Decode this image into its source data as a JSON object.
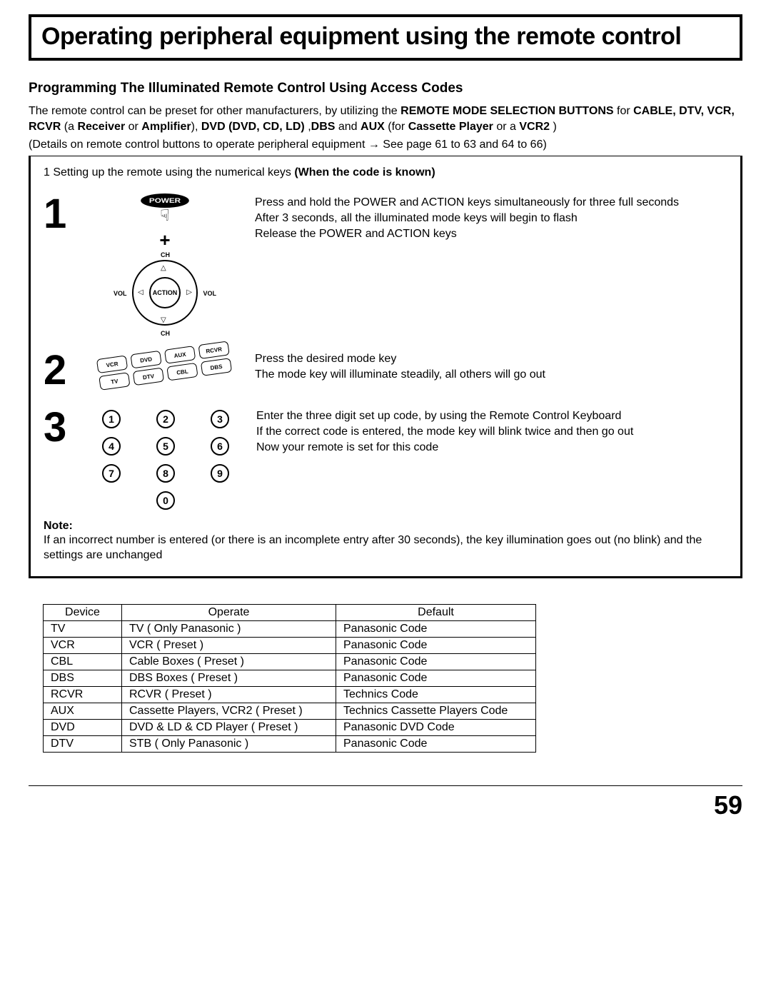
{
  "title": "Operating peripheral equipment using the remote control",
  "subhead": "Programming The Illuminated Remote Control Using Access Codes",
  "intro_parts": [
    "The remote control can be preset for other manufacturers, by utilizing the ",
    "REMOTE MODE SELECTION BUTTONS",
    " for ",
    "CABLE, DTV, VCR, RCVR ",
    "(a ",
    "Receiver",
    " or ",
    "Amplifier",
    "), ",
    "DVD (DVD, CD, LD)",
    " ,",
    "DBS",
    " and ",
    "AUX",
    " (for ",
    "Cassette Player",
    " or a ",
    "VCR2",
    " )"
  ],
  "details": "(Details on remote control buttons to operate peripheral equipment  →  See page 61 to 63 and 64 to 66)",
  "lead_prefix": "1  Setting up the remote using the numerical keys  ",
  "lead_bold": "(When the code is known)",
  "step1": {
    "num": "1",
    "power_label": "POWER",
    "action_label": "ACTION",
    "labels": {
      "ch": "CH",
      "vol": "VOL"
    },
    "desc_lines": [
      "Press and hold the POWER and ACTION keys simultaneously for three full seconds",
      "After 3 seconds, all the illuminated mode keys will begin to flash",
      "Release the POWER and ACTION keys"
    ]
  },
  "step2": {
    "num": "2",
    "keys": [
      "VCR",
      "DVD",
      "AUX",
      "RCVR",
      "TV",
      "DTV",
      "CBL",
      "DBS"
    ],
    "desc_lines": [
      "Press the desired mode key",
      "The mode key will illuminate steadily, all others will go out"
    ]
  },
  "step3": {
    "num": "3",
    "digits": [
      "1",
      "2",
      "3",
      "4",
      "5",
      "6",
      "7",
      "8",
      "9",
      "0"
    ],
    "desc_lines": [
      "Enter the three digit set up code, by using the Remote Control Keyboard",
      "If the correct code is entered, the mode key will blink twice and then go out",
      "Now your remote is set for this code"
    ]
  },
  "note": {
    "head": "Note:",
    "body": "If an incorrect number is entered (or there is an incomplete entry after 30 seconds), the key illumination goes out (no  blink) and the settings are unchanged"
  },
  "table": {
    "headers": [
      "Device",
      "Operate",
      "Default"
    ],
    "rows": [
      [
        "TV",
        "TV ( Only Panasonic )",
        "Panasonic Code"
      ],
      [
        "VCR",
        "VCR ( Preset )",
        "Panasonic Code"
      ],
      [
        "CBL",
        "Cable Boxes ( Preset )",
        "Panasonic Code"
      ],
      [
        "DBS",
        "DBS Boxes ( Preset )",
        "Panasonic Code"
      ],
      [
        "RCVR",
        "RCVR ( Preset )",
        "Technics Code"
      ],
      [
        "AUX",
        "Cassette Players, VCR2  ( Preset )",
        "Technics Cassette Players Code"
      ],
      [
        "DVD",
        "DVD & LD & CD Player  ( Preset )",
        "Panasonic DVD Code"
      ],
      [
        "DTV",
        "STB  ( Only Panasonic )",
        "Panasonic Code"
      ]
    ]
  },
  "page_number": "59"
}
